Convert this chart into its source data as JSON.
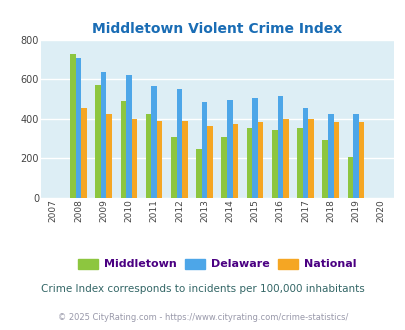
{
  "title": "Middletown Violent Crime Index",
  "years": [
    2007,
    2008,
    2009,
    2010,
    2011,
    2012,
    2013,
    2014,
    2015,
    2016,
    2017,
    2018,
    2019,
    2020
  ],
  "middletown": [
    null,
    725,
    570,
    490,
    422,
    310,
    245,
    310,
    355,
    342,
    355,
    295,
    207,
    null
  ],
  "delaware": [
    null,
    705,
    638,
    622,
    565,
    550,
    483,
    493,
    503,
    513,
    453,
    422,
    422,
    null
  ],
  "national": [
    null,
    455,
    425,
    400,
    390,
    390,
    365,
    375,
    383,
    400,
    400,
    383,
    383,
    null
  ],
  "color_middletown": "#8dc63f",
  "color_delaware": "#4da6e8",
  "color_national": "#f5a623",
  "ylim": [
    0,
    800
  ],
  "yticks": [
    0,
    200,
    400,
    600,
    800
  ],
  "bg_color": "#ddeef5",
  "fig_bg": "#ffffff",
  "footnote1": "Crime Index corresponds to incidents per 100,000 inhabitants",
  "footnote2": "© 2025 CityRating.com - https://www.cityrating.com/crime-statistics/",
  "title_color": "#1a6db5",
  "footnote1_color": "#336666",
  "footnote2_color": "#9999aa",
  "legend_text_color": "#4b0082",
  "legend_labels": [
    "Middletown",
    "Delaware",
    "National"
  ],
  "bar_width": 0.22
}
